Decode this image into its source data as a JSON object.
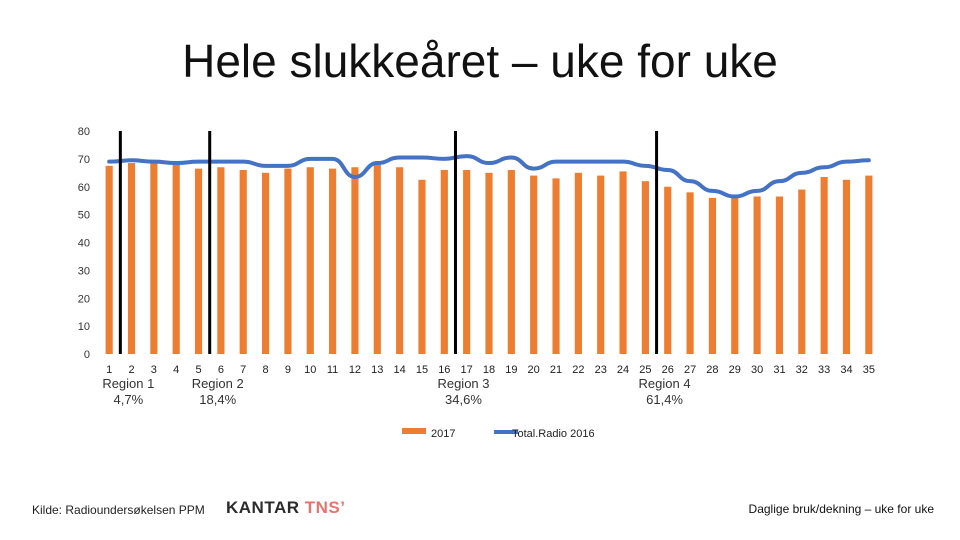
{
  "title": "Hele slukkeåret – uke for uke",
  "source_text": "Kilde: Radioundersøkelsen PPM",
  "brand": {
    "main": "KANTAR",
    "accent": "TNS",
    "mark": "’"
  },
  "footer_right": "Daglige bruk/dekning – uke for uke",
  "colors": {
    "bar": "#ED7D31",
    "line": "#4472C4",
    "divider": "#000000"
  },
  "chart_data": {
    "type": "bar",
    "categories": [
      "1",
      "2",
      "3",
      "4",
      "5",
      "6",
      "7",
      "8",
      "9",
      "10",
      "11",
      "12",
      "13",
      "14",
      "15",
      "16",
      "17",
      "18",
      "19",
      "20",
      "21",
      "22",
      "23",
      "24",
      "25",
      "26",
      "27",
      "28",
      "29",
      "30",
      "31",
      "32",
      "33",
      "34",
      "35"
    ],
    "ylim": [
      0,
      80
    ],
    "yticks": [
      "0",
      "10",
      "20",
      "30",
      "40",
      "50",
      "60",
      "70",
      "80"
    ],
    "series": [
      {
        "name": "2017",
        "type": "bar",
        "values": [
          67.5,
          68.5,
          69,
          68,
          66.5,
          67,
          66,
          65,
          66.5,
          67,
          66.5,
          67,
          68,
          67,
          62.5,
          66,
          66,
          65,
          66,
          64,
          63,
          65,
          64,
          65.5,
          62,
          60,
          58,
          56,
          56,
          56.5,
          56.5,
          59,
          63.5,
          62.5,
          64
        ]
      },
      {
        "name": "Total Radio 2016",
        "type": "line",
        "values": [
          69,
          69.5,
          69,
          68.5,
          69,
          69,
          69,
          67.5,
          67.5,
          70,
          70,
          63.5,
          68.5,
          70.5,
          70.5,
          70,
          71,
          68.5,
          70.5,
          66.5,
          69,
          69,
          69,
          69,
          67.5,
          66,
          62,
          58.5,
          56.5,
          58.5,
          62,
          65,
          67,
          69,
          69.5
        ]
      }
    ],
    "regions": [
      {
        "name": "Region 1",
        "pct": "4,7%",
        "after_week": 1
      },
      {
        "name": "Region 2",
        "pct": "18,4%",
        "after_week": 5
      },
      {
        "name": "Region 3",
        "pct": "34,6%",
        "after_week": 16
      },
      {
        "name": "Region 4",
        "pct": "61,4%",
        "after_week": 25
      }
    ],
    "legend": {
      "bar_label": "2017",
      "line_label": "Total.Radio 2016",
      "placement": "bottom"
    }
  }
}
